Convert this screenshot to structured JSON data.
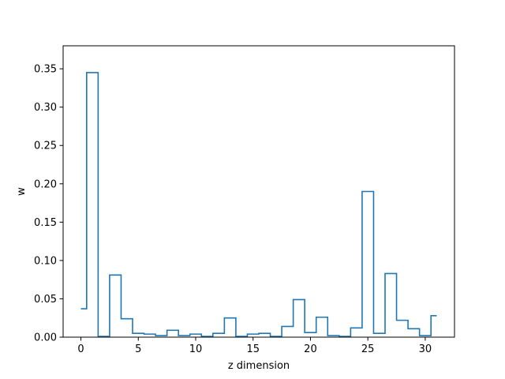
{
  "chart_data": {
    "type": "line",
    "style": "step-histogram",
    "title": "",
    "xlabel": "z dimension",
    "ylabel": "w",
    "xlim": [
      -1.55,
      32.55
    ],
    "ylim": [
      0.0,
      0.38
    ],
    "x_ticks": [
      0,
      5,
      10,
      15,
      20,
      25,
      30
    ],
    "y_ticks": [
      0.0,
      0.05,
      0.1,
      0.15,
      0.2,
      0.25,
      0.3,
      0.35
    ],
    "y_tick_labels": [
      "0.00",
      "0.05",
      "0.10",
      "0.15",
      "0.20",
      "0.25",
      "0.30",
      "0.35"
    ],
    "grid": false,
    "series": [
      {
        "color": "#1f77b4",
        "x": [
          0,
          1,
          2,
          3,
          4,
          5,
          6,
          7,
          8,
          9,
          10,
          11,
          12,
          13,
          14,
          15,
          16,
          17,
          18,
          19,
          20,
          21,
          22,
          23,
          24,
          25,
          26,
          27,
          28,
          29,
          30,
          31
        ],
        "values": [
          0.037,
          0.345,
          0.001,
          0.081,
          0.024,
          0.005,
          0.004,
          0.002,
          0.009,
          0.002,
          0.004,
          0.001,
          0.005,
          0.025,
          0.001,
          0.004,
          0.005,
          0.001,
          0.014,
          0.049,
          0.006,
          0.026,
          0.002,
          0.001,
          0.012,
          0.19,
          0.005,
          0.083,
          0.022,
          0.011,
          0.002,
          0.028
        ]
      }
    ]
  }
}
